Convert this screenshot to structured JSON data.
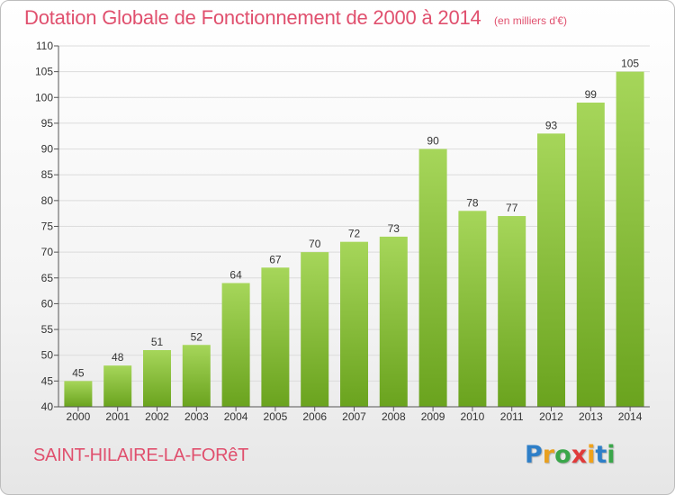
{
  "title": "Dotation Globale de Fonctionnement de 2000 à 2014",
  "subtitle": "(en milliers d'€)",
  "commune": "SAINT-HILAIRE-LA-FORêT",
  "logo": {
    "text": "Proxiti",
    "letter_colors": [
      "#2e7fc8",
      "#e8a020",
      "#3aa64a",
      "#e03a3a",
      "#f0a21a",
      "#2e7fc8",
      "#3aa64a"
    ]
  },
  "colors": {
    "text_accent": "#e0506e",
    "bar_light": "#a6d65a",
    "bar_dark": "#6aa31e",
    "grid": "#dcdcdc",
    "axis": "#555555"
  },
  "chart_data": {
    "type": "bar",
    "title": "Dotation Globale de Fonctionnement de 2000 à 2014",
    "subtitle": "(en milliers d'€)",
    "xlabel": "",
    "ylabel": "",
    "categories": [
      "2000",
      "2001",
      "2002",
      "2003",
      "2004",
      "2005",
      "2006",
      "2007",
      "2008",
      "2009",
      "2010",
      "2011",
      "2012",
      "2013",
      "2014"
    ],
    "values": [
      45,
      48,
      51,
      52,
      64,
      67,
      70,
      72,
      73,
      90,
      78,
      77,
      93,
      99,
      105
    ],
    "ylim": [
      40,
      110
    ],
    "yticks": [
      40,
      45,
      50,
      55,
      60,
      65,
      70,
      75,
      80,
      85,
      90,
      95,
      100,
      105,
      110
    ],
    "grid": true,
    "legend": "none"
  }
}
